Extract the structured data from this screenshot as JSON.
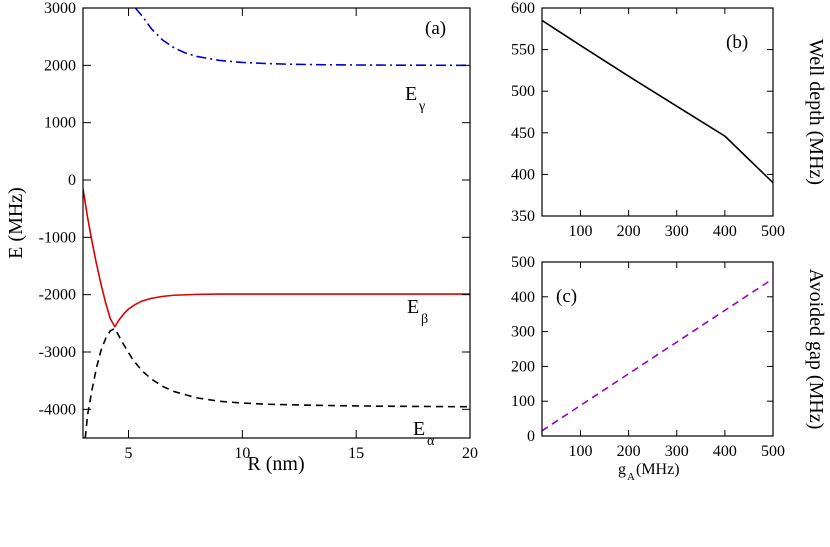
{
  "chart_data": [
    {
      "panel": "a",
      "type": "line",
      "panel_label": "(a)",
      "xlabel": "R (nm)",
      "ylabel": "E (MHz)",
      "xlim": [
        3,
        20
      ],
      "ylim": [
        -4500,
        3000
      ],
      "xticks": [
        5,
        10,
        15,
        20
      ],
      "xtick_labels": [
        "5",
        "10",
        "15",
        "20"
      ],
      "yticks": [
        -4000,
        -3000,
        -2000,
        -1000,
        0,
        1000,
        2000,
        3000
      ],
      "ytick_labels": [
        "-4000",
        "-3000",
        "-2000",
        "-1000",
        "0",
        "1000",
        "2000",
        "3000"
      ],
      "series": [
        {
          "name": "E_gamma",
          "label_main": "E",
          "label_sub": "γ",
          "color": "#0000cc",
          "style": "dashdot",
          "x": [
            5.3,
            5.6,
            6,
            6.5,
            7,
            7.5,
            8,
            9,
            10,
            11,
            12,
            13,
            14,
            15,
            16,
            17,
            18,
            19,
            20
          ],
          "y": [
            3000,
            2860,
            2640,
            2440,
            2305,
            2215,
            2155,
            2085,
            2050,
            2032,
            2020,
            2013,
            2009,
            2006,
            2004,
            2003,
            2002,
            2001,
            2001
          ]
        },
        {
          "name": "E_beta",
          "label_main": "E",
          "label_sub": "β",
          "color": "#dd0000",
          "style": "solid",
          "x": [
            3,
            3.2,
            3.4,
            3.6,
            3.8,
            4.0,
            4.2,
            4.4,
            4.6,
            4.8,
            5,
            5.3,
            5.6,
            6,
            6.5,
            7,
            8,
            9,
            10,
            12,
            14,
            16,
            18,
            20
          ],
          "y": [
            -150,
            -650,
            -1080,
            -1480,
            -1830,
            -2150,
            -2420,
            -2560,
            -2430,
            -2330,
            -2250,
            -2170,
            -2110,
            -2065,
            -2030,
            -2010,
            -1995,
            -1990,
            -1990,
            -1990,
            -1990,
            -1990,
            -1990,
            -1990
          ]
        },
        {
          "name": "E_alpha",
          "label_main": "E",
          "label_sub": "α",
          "color": "#000000",
          "style": "dashed",
          "x": [
            3.1,
            3.2,
            3.4,
            3.6,
            3.8,
            4.0,
            4.2,
            4.4,
            4.8,
            5.2,
            5.6,
            6,
            6.5,
            7,
            8,
            9,
            10,
            11,
            12,
            14,
            16,
            18,
            20
          ],
          "y": [
            -4500,
            -4100,
            -3650,
            -3260,
            -2960,
            -2760,
            -2630,
            -2590,
            -2880,
            -3140,
            -3330,
            -3470,
            -3600,
            -3690,
            -3800,
            -3860,
            -3890,
            -3910,
            -3920,
            -3935,
            -3945,
            -3950,
            -3955
          ]
        }
      ]
    },
    {
      "panel": "b",
      "type": "line",
      "panel_label": "(b)",
      "xlabel": "",
      "ylabel": "Well depth (MHz)",
      "xlim": [
        20,
        500
      ],
      "ylim": [
        350,
        600
      ],
      "xticks": [
        100,
        200,
        300,
        400,
        500
      ],
      "xtick_labels": [
        "100",
        "200",
        "300",
        "400",
        "500"
      ],
      "yticks": [
        350,
        400,
        450,
        500,
        550,
        600
      ],
      "ytick_labels": [
        "350",
        "400",
        "450",
        "500",
        "550",
        "600"
      ],
      "series": [
        {
          "name": "well depth",
          "color": "#000000",
          "style": "solid",
          "x": [
            20,
            100,
            200,
            300,
            400,
            500
          ],
          "y": [
            585,
            555,
            518,
            482,
            446,
            390
          ]
        }
      ]
    },
    {
      "panel": "c",
      "type": "line",
      "panel_label": "(c)",
      "xlabel_main": "g",
      "xlabel_sub": "A",
      "xlabel_rest": " (MHz)",
      "ylabel": "Avoided gap (MHz)",
      "xlim": [
        20,
        500
      ],
      "ylim": [
        0,
        500
      ],
      "xticks": [
        100,
        200,
        300,
        400,
        500
      ],
      "xtick_labels": [
        "100",
        "200",
        "300",
        "400",
        "500"
      ],
      "yticks": [
        0,
        100,
        200,
        300,
        400,
        500
      ],
      "ytick_labels": [
        "0",
        "100",
        "200",
        "300",
        "400",
        "500"
      ],
      "series": [
        {
          "name": "avoided gap",
          "color": "#9900cc",
          "style": "dashed",
          "x": [
            20,
            500
          ],
          "y": [
            15,
            452
          ]
        }
      ]
    }
  ]
}
